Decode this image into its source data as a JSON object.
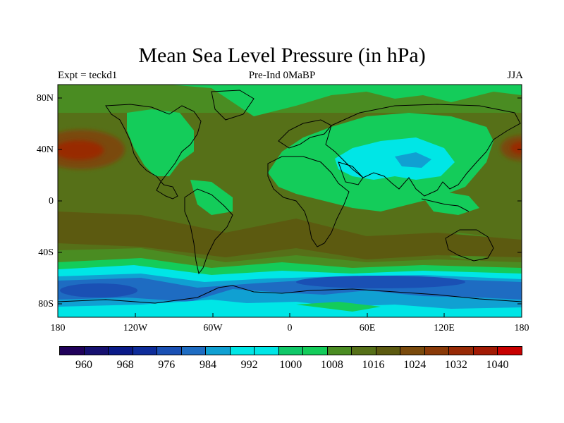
{
  "title": "Mean Sea Level Pressure (in hPa)",
  "left_label": "Expt = teckd1",
  "center_label": "Pre-Ind 0MaBP",
  "right_label": "JJA",
  "lat_ticks": [
    "80N",
    "40N",
    "0",
    "40S",
    "80S"
  ],
  "lon_ticks": [
    "180",
    "120W",
    "60W",
    "0",
    "60E",
    "120E",
    "180"
  ],
  "colorbar": {
    "labels": [
      "960",
      "968",
      "976",
      "984",
      "992",
      "1000",
      "1008",
      "1016",
      "1024",
      "1032",
      "1040"
    ],
    "colors": [
      "#20005a",
      "#161070",
      "#0a1a88",
      "#0e2c9a",
      "#1a50b4",
      "#1e6cc2",
      "#10a0d2",
      "#00e6e6",
      "#00e6e6",
      "#10c868",
      "#14cc5a",
      "#4a8c22",
      "#567018",
      "#5c5a10",
      "#7a4a0c",
      "#8a3a08",
      "#982a06",
      "#a21a04",
      "#c80000"
    ]
  },
  "chart_data": {
    "type": "heatmap",
    "title": "Mean Sea Level Pressure (in hPa)",
    "units": "hPa",
    "x_range": [
      -180,
      180
    ],
    "y_range": [
      -90,
      90
    ],
    "contour_levels": [
      956,
      960,
      964,
      968,
      972,
      976,
      980,
      984,
      988,
      992,
      996,
      1000,
      1004,
      1008,
      1012,
      1016,
      1020,
      1024,
      1028,
      1032,
      1036,
      1040
    ]
  }
}
